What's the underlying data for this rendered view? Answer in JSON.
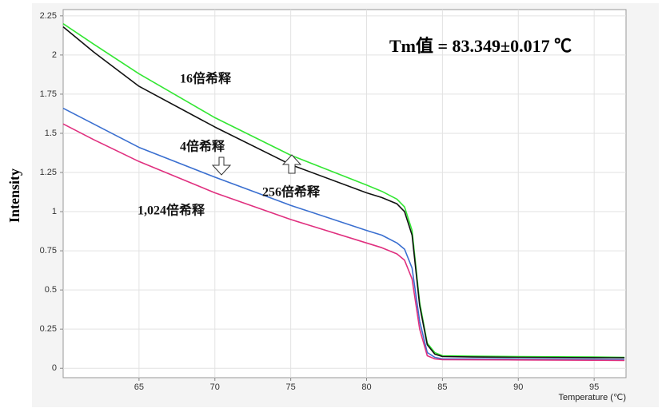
{
  "chart_data": {
    "type": "line",
    "annotation": "Tm值 = 83.349±0.017 ℃",
    "x_label": "Temperature (℃)",
    "y_label": "Intensity",
    "x": [
      60,
      62,
      65,
      70,
      75,
      80,
      81,
      82,
      82.5,
      83,
      83.5,
      84,
      84.5,
      85,
      87,
      90,
      95,
      97
    ],
    "series": [
      {
        "name": "16倍希释",
        "color": "#33e633",
        "values": [
          2.2,
          2.07,
          1.88,
          1.6,
          1.36,
          1.17,
          1.13,
          1.08,
          1.03,
          0.88,
          0.42,
          0.16,
          0.1,
          0.08,
          0.077,
          0.075,
          0.072,
          0.07
        ]
      },
      {
        "name": "256倍希释",
        "color": "#111111",
        "values": [
          2.18,
          2.02,
          1.8,
          1.54,
          1.3,
          1.12,
          1.09,
          1.05,
          1.0,
          0.85,
          0.4,
          0.15,
          0.09,
          0.075,
          0.072,
          0.07,
          0.068,
          0.067
        ]
      },
      {
        "name": "4倍希释",
        "color": "#3a6fd0",
        "values": [
          1.66,
          1.56,
          1.41,
          1.22,
          1.04,
          0.88,
          0.85,
          0.8,
          0.76,
          0.64,
          0.3,
          0.1,
          0.07,
          0.06,
          0.06,
          0.058,
          0.056,
          0.055
        ]
      },
      {
        "name": "1,024倍希释",
        "color": "#e0307f",
        "values": [
          1.56,
          1.46,
          1.32,
          1.12,
          0.95,
          0.8,
          0.77,
          0.73,
          0.69,
          0.57,
          0.25,
          0.08,
          0.06,
          0.055,
          0.054,
          0.053,
          0.051,
          0.05
        ]
      }
    ],
    "xlim": [
      60,
      97.1
    ],
    "xticks": [
      65,
      70,
      75,
      80,
      85,
      90,
      95
    ],
    "ylim": [
      -0.06,
      2.29
    ],
    "yticks": [
      0,
      0.25,
      0.5,
      0.75,
      1,
      1.25,
      1.5,
      1.75,
      2,
      2.25
    ],
    "grid": true
  }
}
